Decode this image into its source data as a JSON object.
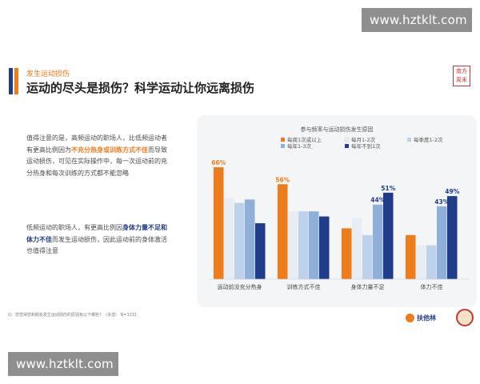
{
  "watermark": {
    "top": "www.hztklt.com",
    "bottom": "www.hztklt.com"
  },
  "header": {
    "eyebrow": "发生运动损伤",
    "title": "运动的尽头是损伤？科学运动让你远离损伤",
    "seal_text": "南方周末"
  },
  "body": {
    "p1_a": "值得注意的是，高频运动的职场人，比低频运动者有更高比例因为",
    "p1_hl": "不充分热身或训练方式不佳",
    "p1_b": "而导致运动损伤，可见在实际操作中，每一次运动前的充分热身和每次训练的方式都不能忽略",
    "p2_a": "低频运动的职场人，有更高比例因",
    "p2_hl": "身体力量不足和体力不佳",
    "p2_b": "而发生运动损伤，因此运动前的身体激活也值得注意"
  },
  "footnote": "Q：您觉得您和朋友发生运动损伤的原因有以下哪些？（多选） N=1331",
  "brand": {
    "name": "扶他林"
  },
  "colors": {
    "orange": "#ef7c1a",
    "navy": "#1f3b8a",
    "series": [
      "#ef7c1a",
      "#e8edf4",
      "#bcd2ea",
      "#8eafd9",
      "#1f3b8a"
    ]
  },
  "chart_data": {
    "type": "bar",
    "title": "参与频率与运动损伤发生原因",
    "categories": [
      "运动前没充分热身",
      "训练方式不佳",
      "身体力量不足",
      "体力不佳"
    ],
    "series": [
      {
        "name": "每周1次或以上",
        "values": [
          66,
          56,
          30,
          26
        ]
      },
      {
        "name": "每月1-2次",
        "values": [
          48,
          40,
          36,
          20
        ]
      },
      {
        "name": "每季度1-2次",
        "values": [
          45,
          40,
          26,
          20
        ]
      },
      {
        "name": "每年1-3次",
        "values": [
          47,
          40,
          44,
          43
        ]
      },
      {
        "name": "每年不到1次",
        "values": [
          33,
          37,
          51,
          49
        ]
      }
    ],
    "data_labels": [
      {
        "series": 0,
        "category": 0,
        "text": "66%"
      },
      {
        "series": 0,
        "category": 1,
        "text": "56%"
      },
      {
        "series": 3,
        "category": 2,
        "text": "44%"
      },
      {
        "series": 4,
        "category": 2,
        "text": "51%"
      },
      {
        "series": 3,
        "category": 3,
        "text": "43%"
      },
      {
        "series": 4,
        "category": 3,
        "text": "49%"
      }
    ],
    "ylim": [
      0,
      75
    ],
    "legend_position": "top"
  }
}
